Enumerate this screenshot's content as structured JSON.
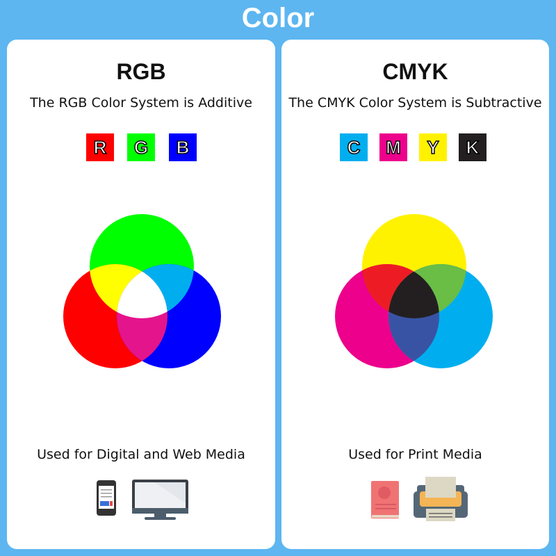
{
  "title": "Color",
  "rgb": {
    "heading": "RGB",
    "subtitle": "The RGB Color System is Additive",
    "letters": [
      "R",
      "G",
      "B"
    ],
    "letter_colors": [
      "#ff0000",
      "#00ff00",
      "#0000ff"
    ],
    "usage": "Used for Digital and Web Media",
    "icons": [
      "smartphone-icon",
      "monitor-icon"
    ]
  },
  "cmyk": {
    "heading": "CMYK",
    "subtitle": "The CMYK Color System is Subtractive",
    "letters": [
      "C",
      "M",
      "Y",
      "K"
    ],
    "letter_colors": [
      "#00aeef",
      "#ec008c",
      "#fff200",
      "#231f20"
    ],
    "usage": "Used for Print Media",
    "icons": [
      "book-icon",
      "printer-icon"
    ]
  }
}
